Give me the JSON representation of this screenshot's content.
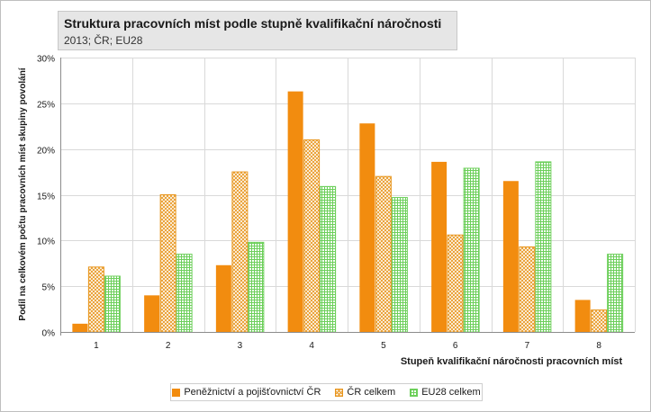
{
  "chart_data": {
    "type": "bar",
    "title": "Struktura pracovních míst podle stupně kvalifikační náročnosti",
    "subtitle": "2013; ČR; EU28",
    "xlabel": "Stupeň kvalifikační náročnosti pracovních míst",
    "ylabel": "Podíl na celkovém počtu pracovních míst skupiny povolání",
    "categories": [
      "1",
      "2",
      "3",
      "4",
      "5",
      "6",
      "7",
      "8"
    ],
    "yticks": [
      "0%",
      "5%",
      "10%",
      "15%",
      "20%",
      "25%",
      "30%"
    ],
    "ylim": [
      0,
      30
    ],
    "grid": true,
    "legend_position": "bottom",
    "series": [
      {
        "name": "Peněžnictví a pojišťovnictví ČR",
        "values": [
          0.9,
          4.0,
          7.3,
          26.3,
          22.8,
          18.6,
          16.5,
          3.5
        ],
        "color": "#f28c0f",
        "pattern": "solid"
      },
      {
        "name": "ČR celkem",
        "values": [
          7.1,
          15.0,
          17.5,
          21.0,
          17.0,
          10.6,
          9.3,
          2.4
        ],
        "color": "#e8961e",
        "pattern": "cross-hatch"
      },
      {
        "name": "EU28 celkem",
        "values": [
          6.1,
          8.5,
          9.8,
          15.9,
          14.7,
          17.9,
          18.6,
          8.5
        ],
        "color": "#6ccf5a",
        "pattern": "grid"
      }
    ]
  }
}
